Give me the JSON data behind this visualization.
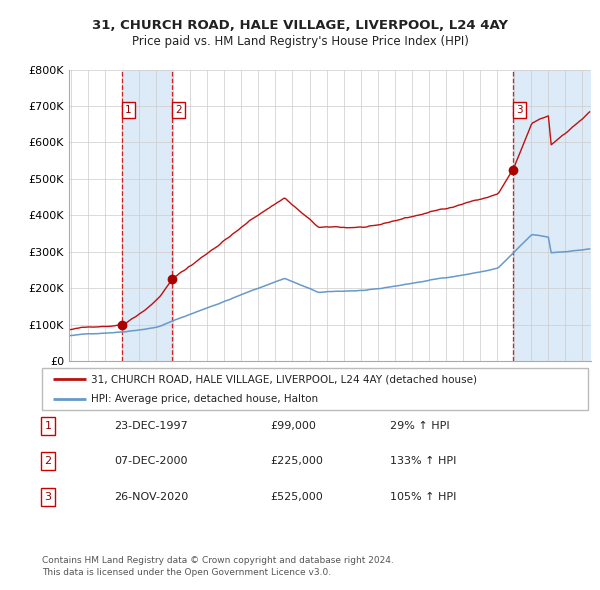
{
  "title1": "31, CHURCH ROAD, HALE VILLAGE, LIVERPOOL, L24 4AY",
  "title2": "Price paid vs. HM Land Registry's House Price Index (HPI)",
  "ylabel_ticks": [
    "£0",
    "£100K",
    "£200K",
    "£300K",
    "£400K",
    "£500K",
    "£600K",
    "£700K",
    "£800K"
  ],
  "ytick_values": [
    0,
    100000,
    200000,
    300000,
    400000,
    500000,
    600000,
    700000,
    800000
  ],
  "ylim": [
    0,
    800000
  ],
  "xlim_start": 1994.9,
  "xlim_end": 2025.5,
  "sale_dates": [
    1997.98,
    2000.95,
    2020.92
  ],
  "sale_prices": [
    99000,
    225000,
    525000
  ],
  "sale_labels": [
    "1",
    "2",
    "3"
  ],
  "vline_color": "#cc0000",
  "vband_color": "#ddeaf7",
  "red_line_color": "#bb1111",
  "blue_line_color": "#6699cc",
  "dot_color": "#aa0000",
  "background_color": "#ffffff",
  "grid_color": "#cccccc",
  "legend_line1": "31, CHURCH ROAD, HALE VILLAGE, LIVERPOOL, L24 4AY (detached house)",
  "legend_line2": "HPI: Average price, detached house, Halton",
  "table_rows": [
    [
      "1",
      "23-DEC-1997",
      "£99,000",
      "29% ↑ HPI"
    ],
    [
      "2",
      "07-DEC-2000",
      "£225,000",
      "133% ↑ HPI"
    ],
    [
      "3",
      "26-NOV-2020",
      "£525,000",
      "105% ↑ HPI"
    ]
  ],
  "footnote1": "Contains HM Land Registry data © Crown copyright and database right 2024.",
  "footnote2": "This data is licensed under the Open Government Licence v3.0."
}
